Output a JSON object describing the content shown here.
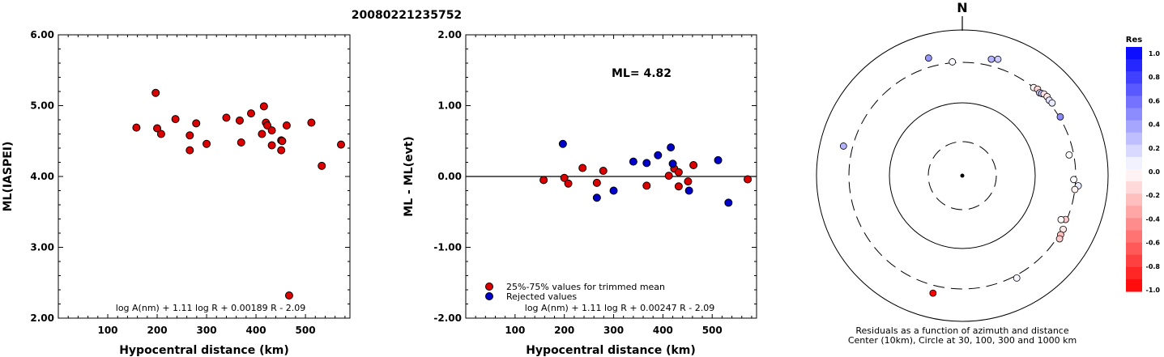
{
  "page": {
    "title": "20080221235752"
  },
  "chart_data": [
    {
      "type": "scatter",
      "name": "ml-vs-distance",
      "xlabel": "Hypocentral distance (km)",
      "ylabel": "ML(IASPEI)",
      "xlim": [
        0,
        590
      ],
      "ylim": [
        2.0,
        6.0
      ],
      "xticks": [
        "100",
        "200",
        "300",
        "400",
        "500"
      ],
      "xtick_values": [
        100,
        200,
        300,
        400,
        500
      ],
      "yticks": [
        "2.00",
        "3.00",
        "4.00",
        "5.00",
        "6.00"
      ],
      "ytick_values": [
        2,
        3,
        4,
        5,
        6
      ],
      "formula": "log A(nm) + 1.11 log R + 0.00189 R - 2.09",
      "marker_color": "#dd0000",
      "points": [
        [
          158,
          4.69
        ],
        [
          197,
          5.18
        ],
        [
          200,
          4.68
        ],
        [
          208,
          4.6
        ],
        [
          237,
          4.81
        ],
        [
          266,
          4.58
        ],
        [
          266,
          4.37
        ],
        [
          279,
          4.75
        ],
        [
          300,
          4.46
        ],
        [
          340,
          4.83
        ],
        [
          367,
          4.79
        ],
        [
          370,
          4.48
        ],
        [
          390,
          4.89
        ],
        [
          412,
          4.6
        ],
        [
          416,
          4.99
        ],
        [
          420,
          4.76
        ],
        [
          423,
          4.72
        ],
        [
          432,
          4.44
        ],
        [
          432,
          4.65
        ],
        [
          451,
          4.51
        ],
        [
          451,
          4.37
        ],
        [
          453,
          4.5
        ],
        [
          462,
          4.72
        ],
        [
          467,
          2.32
        ],
        [
          512,
          4.76
        ],
        [
          533,
          4.15
        ],
        [
          572,
          4.45
        ]
      ]
    },
    {
      "type": "scatter",
      "name": "residual-vs-distance",
      "xlabel": "Hypocentral distance (km)",
      "ylabel": "ML - ML(evt)",
      "xlim": [
        0,
        590
      ],
      "ylim": [
        -2.0,
        2.0
      ],
      "xticks": [
        "100",
        "200",
        "300",
        "400",
        "500"
      ],
      "xtick_values": [
        100,
        200,
        300,
        400,
        500
      ],
      "yticks": [
        "-2.00",
        "-1.00",
        "0.00",
        "1.00",
        "2.00"
      ],
      "ytick_values": [
        -2,
        -1,
        0,
        1,
        2
      ],
      "annotation": "ML=  4.82",
      "formula": "log A(nm) + 1.11 log R + 0.00247 R - 2.09",
      "legend": [
        {
          "label": "25%-75% values for trimmed mean",
          "color": "#dd0000"
        },
        {
          "label": "Rejected values",
          "color": "#0000cc"
        }
      ],
      "series": [
        {
          "name": "25%-75% values for trimmed mean",
          "color": "#dd0000",
          "points": [
            [
              158,
              -0.05
            ],
            [
              200,
              -0.02
            ],
            [
              208,
              -0.1
            ],
            [
              237,
              0.12
            ],
            [
              266,
              -0.09
            ],
            [
              279,
              0.08
            ],
            [
              367,
              -0.13
            ],
            [
              412,
              0.01
            ],
            [
              423,
              0.11
            ],
            [
              432,
              0.06
            ],
            [
              432,
              -0.14
            ],
            [
              451,
              -0.07
            ],
            [
              462,
              0.16
            ],
            [
              572,
              -0.04
            ]
          ]
        },
        {
          "name": "Rejected values",
          "color": "#0000cc",
          "points": [
            [
              197,
              0.46
            ],
            [
              266,
              -0.3
            ],
            [
              300,
              -0.2
            ],
            [
              340,
              0.21
            ],
            [
              367,
              0.19
            ],
            [
              390,
              0.3
            ],
            [
              416,
              0.41
            ],
            [
              420,
              0.18
            ],
            [
              453,
              -0.2
            ],
            [
              512,
              0.23
            ],
            [
              533,
              -0.37
            ]
          ]
        }
      ]
    },
    {
      "type": "polar-scatter",
      "name": "azimuth-residuals",
      "north_label": "N",
      "caption_line1": "Residuals as a function of azimuth and distance",
      "caption_line2": "Center (10km), Circle at 30, 100, 300 and 1000 km",
      "rings_km": [
        30,
        100,
        300,
        1000
      ],
      "dashed_rings_km": [
        30,
        300
      ],
      "colorbar": {
        "title": "Res",
        "labels": [
          "1.0",
          "0.8",
          "0.6",
          "0.4",
          "0.2",
          "0.0",
          "-0.2",
          "-0.4",
          "-0.6",
          "-0.8",
          "-1.0"
        ],
        "top_color": "#0000ff",
        "zero_color": "#ffffff",
        "bottom_color": "#ff0000"
      },
      "points": [
        {
          "azimuth": -16,
          "distance_km": 420,
          "residual": 0.41
        },
        {
          "azimuth": -5,
          "distance_km": 310,
          "residual": 0.02
        },
        {
          "azimuth": 14,
          "distance_km": 385,
          "residual": 0.3
        },
        {
          "azimuth": 17,
          "distance_km": 410,
          "residual": 0.2
        },
        {
          "azimuth": 39,
          "distance_km": 300,
          "residual": -0.03
        },
        {
          "azimuth": 41,
          "distance_km": 315,
          "residual": -0.16
        },
        {
          "azimuth": 43,
          "distance_km": 300,
          "residual": 0.18
        },
        {
          "azimuth": 44,
          "distance_km": 310,
          "residual": 0.21
        },
        {
          "azimuth": 45,
          "distance_km": 325,
          "residual": -0.12
        },
        {
          "azimuth": 47,
          "distance_km": 330,
          "residual": -0.1
        },
        {
          "azimuth": 49,
          "distance_km": 320,
          "residual": 0.11
        },
        {
          "azimuth": 51,
          "distance_km": 325,
          "residual": 0.08
        },
        {
          "azimuth": 59,
          "distance_km": 310,
          "residual": 0.46
        },
        {
          "azimuth": 79,
          "distance_km": 265,
          "residual": -0.01
        },
        {
          "azimuth": 92,
          "distance_km": 285,
          "residual": 0.01
        },
        {
          "azimuth": 95,
          "distance_km": 335,
          "residual": 0.08
        },
        {
          "azimuth": 97,
          "distance_km": 300,
          "residual": -0.05
        },
        {
          "azimuth": 113,
          "distance_km": 290,
          "residual": -0.2
        },
        {
          "azimuth": 114,
          "distance_km": 260,
          "residual": -0.02
        },
        {
          "azimuth": 118,
          "distance_km": 310,
          "residual": -0.1
        },
        {
          "azimuth": 121,
          "distance_km": 315,
          "residual": -0.25
        },
        {
          "azimuth": 123,
          "distance_km": 330,
          "residual": -0.2
        },
        {
          "azimuth": 152,
          "distance_km": 330,
          "residual": 0.03
        },
        {
          "azimuth": 194,
          "distance_km": 400,
          "residual": -1.0
        },
        {
          "azimuth": 284,
          "distance_km": 420,
          "residual": 0.3
        }
      ]
    }
  ]
}
